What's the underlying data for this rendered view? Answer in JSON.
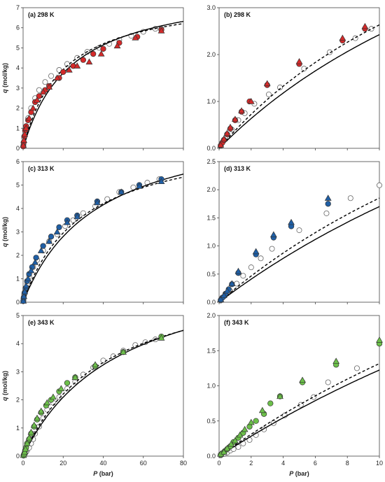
{
  "colors": {
    "red": "#d42a2a",
    "blue": "#1f5fa6",
    "green": "#6cc04a",
    "open": "#ffffff",
    "edge": "#333333"
  },
  "chart_data": [
    {
      "type": "scatter",
      "title": "(a) 298 K",
      "xlabel_pre": "P",
      "xlabel_post": " (bar)",
      "ylabel_pre": "q",
      "ylabel_post": " (mol/kg)",
      "xlim": [
        0,
        80
      ],
      "ylim": [
        0,
        7
      ],
      "xticks": [
        "0",
        "20",
        "40",
        "60",
        "80"
      ],
      "yticks": [
        "0",
        "1",
        "2",
        "3",
        "4",
        "5",
        "6",
        "7"
      ],
      "show_xticks": false,
      "show_xlabel": false,
      "color": "red",
      "open": [
        [
          0.2,
          0.2
        ],
        [
          0.5,
          0.5
        ],
        [
          1,
          0.8
        ],
        [
          1.5,
          1.1
        ],
        [
          2.5,
          1.5
        ],
        [
          4,
          2.0
        ],
        [
          6,
          2.5
        ],
        [
          8,
          2.9
        ],
        [
          11,
          3.3
        ],
        [
          14,
          3.6
        ],
        [
          18,
          3.9
        ],
        [
          22,
          4.2
        ],
        [
          27,
          4.5
        ],
        [
          32,
          4.8
        ],
        [
          38,
          5.0
        ],
        [
          43,
          5.2
        ],
        [
          48,
          5.4
        ],
        [
          54,
          5.6
        ],
        [
          60,
          5.8
        ],
        [
          66,
          5.95
        ],
        [
          69,
          5.95
        ]
      ],
      "circles": [
        [
          0.1,
          0.1
        ],
        [
          0.3,
          0.3
        ],
        [
          0.6,
          0.6
        ],
        [
          1,
          0.9
        ],
        [
          1.5,
          1.1
        ],
        [
          2.5,
          1.4
        ],
        [
          4,
          1.8
        ],
        [
          6,
          2.3
        ],
        [
          8,
          2.6
        ],
        [
          11,
          2.9
        ],
        [
          13,
          3.1
        ],
        [
          18,
          3.5
        ],
        [
          20,
          3.8
        ],
        [
          25,
          4.1
        ],
        [
          30,
          4.4
        ],
        [
          35,
          4.7
        ],
        [
          40,
          4.95
        ],
        [
          48,
          5.25
        ],
        [
          57,
          5.55
        ],
        [
          69,
          5.9
        ]
      ],
      "triangles": [
        [
          0.1,
          0.15
        ],
        [
          0.4,
          0.4
        ],
        [
          0.8,
          0.7
        ],
        [
          1.5,
          1.0
        ],
        [
          3,
          1.5
        ],
        [
          5,
          2.0
        ],
        [
          7,
          2.4
        ],
        [
          10,
          2.8
        ],
        [
          13,
          3.05
        ],
        [
          17,
          3.5
        ],
        [
          23,
          3.9
        ],
        [
          27,
          4.1
        ],
        [
          33,
          4.3
        ],
        [
          39,
          4.7
        ],
        [
          47,
          5.1
        ],
        [
          56,
          5.5
        ],
        [
          69,
          5.85
        ]
      ],
      "solid": {
        "qm": 8.2,
        "b": 0.042
      },
      "dashed": {
        "qm": 7.7,
        "b": 0.052
      }
    },
    {
      "type": "scatter",
      "title": "(b) 298 K",
      "xlabel_pre": "P",
      "xlabel_post": " (bar)",
      "ylabel_pre": "",
      "ylabel_post": "",
      "xlim": [
        0,
        10
      ],
      "ylim": [
        0,
        3
      ],
      "xticks": [
        "0",
        "2",
        "4",
        "6",
        "8",
        "10"
      ],
      "yticks": [
        "0.0",
        "1.0",
        "2.0",
        "3.0"
      ],
      "show_xticks": false,
      "show_xlabel": false,
      "color": "red",
      "open": [
        [
          0.1,
          0.05
        ],
        [
          0.4,
          0.2
        ],
        [
          0.8,
          0.4
        ],
        [
          1.2,
          0.6
        ],
        [
          1.6,
          0.75
        ],
        [
          2.2,
          0.95
        ],
        [
          3.1,
          1.15
        ],
        [
          3.8,
          1.3
        ],
        [
          5.3,
          1.7
        ],
        [
          6.9,
          2.05
        ],
        [
          8.5,
          2.35
        ],
        [
          9.5,
          2.55
        ]
      ],
      "circles": [
        [
          0.1,
          0.06
        ],
        [
          0.2,
          0.12
        ],
        [
          0.3,
          0.18
        ],
        [
          0.5,
          0.3
        ],
        [
          0.7,
          0.42
        ],
        [
          1.0,
          0.6
        ],
        [
          1.4,
          0.78
        ],
        [
          1.9,
          1.0
        ],
        [
          3.0,
          1.35
        ],
        [
          5.0,
          1.8
        ],
        [
          7.7,
          2.3
        ],
        [
          9.1,
          2.55
        ]
      ],
      "triangles": [
        [
          0.1,
          0.07
        ],
        [
          0.3,
          0.2
        ],
        [
          0.5,
          0.32
        ],
        [
          0.7,
          0.45
        ],
        [
          1.0,
          0.62
        ],
        [
          1.4,
          0.8
        ],
        [
          2.0,
          1.0
        ],
        [
          3.0,
          1.38
        ],
        [
          5.0,
          1.85
        ],
        [
          7.7,
          2.35
        ],
        [
          9.1,
          2.6
        ]
      ],
      "solid": {
        "qm": 8.2,
        "b": 0.042
      },
      "dashed": {
        "qm": 7.7,
        "b": 0.052
      }
    },
    {
      "type": "scatter",
      "title": "(c) 313 K",
      "xlabel_pre": "P",
      "xlabel_post": " (bar)",
      "ylabel_pre": "q",
      "ylabel_post": " (mol/kg)",
      "xlim": [
        0,
        80
      ],
      "ylim": [
        0,
        6
      ],
      "xticks": [
        "0",
        "20",
        "40",
        "60",
        "80"
      ],
      "yticks": [
        "0",
        "1",
        "2",
        "3",
        "4",
        "5",
        "6"
      ],
      "show_xticks": false,
      "show_xlabel": false,
      "color": "blue",
      "open": [
        [
          0.2,
          0.1
        ],
        [
          0.5,
          0.3
        ],
        [
          1,
          0.5
        ],
        [
          2,
          0.8
        ],
        [
          3,
          1.1
        ],
        [
          5,
          1.5
        ],
        [
          7,
          1.8
        ],
        [
          10,
          2.2
        ],
        [
          13,
          2.6
        ],
        [
          17,
          2.9
        ],
        [
          21,
          3.25
        ],
        [
          25,
          3.5
        ],
        [
          30,
          3.8
        ],
        [
          36,
          4.1
        ],
        [
          42,
          4.4
        ],
        [
          48,
          4.7
        ],
        [
          55,
          4.9
        ],
        [
          62,
          5.1
        ],
        [
          68,
          5.25
        ]
      ],
      "circles": [
        [
          0.1,
          0.05
        ],
        [
          0.3,
          0.2
        ],
        [
          0.7,
          0.4
        ],
        [
          1.2,
          0.6
        ],
        [
          2,
          0.9
        ],
        [
          3,
          1.2
        ],
        [
          4.5,
          1.5
        ],
        [
          6.5,
          1.9
        ],
        [
          10,
          2.4
        ],
        [
          14,
          2.8
        ],
        [
          18,
          3.2
        ],
        [
          22,
          3.5
        ],
        [
          27,
          3.7
        ],
        [
          37,
          4.3
        ],
        [
          49,
          4.7
        ],
        [
          58,
          5.0
        ],
        [
          69,
          5.25
        ]
      ],
      "triangles": [
        [
          0.1,
          0.05
        ],
        [
          0.4,
          0.25
        ],
        [
          0.8,
          0.45
        ],
        [
          1.5,
          0.7
        ],
        [
          2.5,
          1.0
        ],
        [
          4,
          1.35
        ],
        [
          6,
          1.7
        ],
        [
          9,
          2.2
        ],
        [
          13,
          2.6
        ],
        [
          17,
          3.0
        ],
        [
          22,
          3.4
        ],
        [
          27,
          3.65
        ],
        [
          37,
          4.25
        ],
        [
          49,
          4.7
        ],
        [
          58,
          4.95
        ],
        [
          69,
          5.15
        ]
      ],
      "solid": {
        "qm": 8.0,
        "b": 0.027
      },
      "dashed": {
        "qm": 7.3,
        "b": 0.034
      }
    },
    {
      "type": "scatter",
      "title": "(d) 313 K",
      "xlabel_pre": "P",
      "xlabel_post": " (bar)",
      "ylabel_pre": "",
      "ylabel_post": "",
      "xlim": [
        0,
        10
      ],
      "ylim": [
        0,
        2.5
      ],
      "xticks": [
        "0",
        "2",
        "4",
        "6",
        "8",
        "10"
      ],
      "yticks": [
        "0.0",
        "0.5",
        "1.0",
        "1.5",
        "2.0",
        "2.5"
      ],
      "show_xticks": false,
      "show_xlabel": false,
      "color": "blue",
      "open": [
        [
          0.1,
          0.03
        ],
        [
          0.3,
          0.1
        ],
        [
          0.7,
          0.2
        ],
        [
          1.1,
          0.33
        ],
        [
          1.5,
          0.47
        ],
        [
          2.0,
          0.62
        ],
        [
          2.6,
          0.78
        ],
        [
          3.3,
          0.95
        ],
        [
          5.0,
          1.28
        ],
        [
          6.7,
          1.58
        ],
        [
          8.2,
          1.85
        ],
        [
          10,
          2.08
        ]
      ],
      "circles": [
        [
          0.1,
          0.04
        ],
        [
          0.2,
          0.08
        ],
        [
          0.4,
          0.15
        ],
        [
          0.6,
          0.23
        ],
        [
          0.8,
          0.32
        ],
        [
          1.2,
          0.52
        ],
        [
          2.3,
          0.85
        ],
        [
          3.4,
          1.15
        ],
        [
          4.5,
          1.35
        ],
        [
          6.8,
          1.75
        ]
      ],
      "triangles": [
        [
          0.1,
          0.05
        ],
        [
          0.3,
          0.12
        ],
        [
          0.5,
          0.2
        ],
        [
          0.8,
          0.33
        ],
        [
          1.2,
          0.55
        ],
        [
          2.3,
          0.9
        ],
        [
          3.4,
          1.2
        ],
        [
          4.5,
          1.42
        ],
        [
          6.8,
          1.85
        ]
      ],
      "solid": {
        "qm": 8.0,
        "b": 0.027
      },
      "dashed": {
        "qm": 7.3,
        "b": 0.034
      }
    },
    {
      "type": "scatter",
      "title": "(e) 343 K",
      "xlabel_pre": "P",
      "xlabel_post": " (bar)",
      "ylabel_pre": "q",
      "ylabel_post": " (mol/kg)",
      "xlim": [
        0,
        80
      ],
      "ylim": [
        0,
        5
      ],
      "xticks": [
        "0",
        "20",
        "40",
        "60",
        "80"
      ],
      "yticks": [
        "0",
        "1",
        "2",
        "3",
        "4",
        "5"
      ],
      "show_xticks": true,
      "show_xlabel": true,
      "color": "green",
      "open": [
        [
          0.5,
          0.05
        ],
        [
          1,
          0.1
        ],
        [
          1.5,
          0.15
        ],
        [
          2,
          0.2
        ],
        [
          3,
          0.3
        ],
        [
          4,
          0.45
        ],
        [
          5,
          0.6
        ],
        [
          6,
          0.8
        ],
        [
          8,
          1.05
        ],
        [
          10,
          1.35
        ],
        [
          12,
          1.65
        ],
        [
          15,
          1.9
        ],
        [
          18,
          2.1
        ],
        [
          22,
          2.4
        ],
        [
          26,
          2.65
        ],
        [
          30,
          2.9
        ],
        [
          35,
          3.15
        ],
        [
          40,
          3.4
        ],
        [
          45,
          3.55
        ],
        [
          50,
          3.75
        ],
        [
          56,
          3.95
        ],
        [
          61,
          4.05
        ],
        [
          66,
          4.15
        ]
      ],
      "circles": [
        [
          0.2,
          0.02
        ],
        [
          0.4,
          0.05
        ],
        [
          0.7,
          0.1
        ],
        [
          1,
          0.2
        ],
        [
          1.5,
          0.3
        ],
        [
          2,
          0.45
        ],
        [
          3,
          0.6
        ],
        [
          4,
          0.8
        ],
        [
          5.5,
          1.05
        ],
        [
          7,
          1.3
        ],
        [
          9,
          1.55
        ],
        [
          11.5,
          1.8
        ],
        [
          14,
          2.0
        ],
        [
          18,
          2.3
        ],
        [
          22,
          2.6
        ],
        [
          26,
          2.8
        ],
        [
          36,
          3.2
        ],
        [
          50,
          3.7
        ],
        [
          69,
          4.25
        ]
      ],
      "triangles": [
        [
          0.2,
          0.03
        ],
        [
          0.5,
          0.08
        ],
        [
          0.8,
          0.15
        ],
        [
          1.2,
          0.25
        ],
        [
          2,
          0.45
        ],
        [
          3,
          0.65
        ],
        [
          4,
          0.85
        ],
        [
          5.5,
          1.1
        ],
        [
          7,
          1.35
        ],
        [
          9,
          1.6
        ],
        [
          12,
          1.9
        ],
        [
          15,
          2.1
        ],
        [
          19,
          2.4
        ],
        [
          26,
          2.8
        ],
        [
          36,
          3.25
        ],
        [
          50,
          3.7
        ],
        [
          69,
          4.2
        ]
      ],
      "solid": {
        "qm": 7.2,
        "b": 0.0205
      },
      "dashed": {
        "qm": 6.8,
        "b": 0.024
      }
    },
    {
      "type": "scatter",
      "title": "(f) 343 K",
      "xlabel_pre": "P",
      "xlabel_post": " (bar)",
      "ylabel_pre": "",
      "ylabel_post": "",
      "xlim": [
        0,
        10
      ],
      "ylim": [
        0,
        2.0
      ],
      "xticks": [
        "0",
        "2",
        "4",
        "6",
        "8",
        "10"
      ],
      "yticks": [
        "0.0",
        "0.5",
        "1.0",
        "1.5",
        "2.0"
      ],
      "show_xticks": true,
      "show_xlabel": true,
      "color": "green",
      "open": [
        [
          0.1,
          0.01
        ],
        [
          0.3,
          0.03
        ],
        [
          0.5,
          0.05
        ],
        [
          0.7,
          0.08
        ],
        [
          0.9,
          0.1
        ],
        [
          1.2,
          0.13
        ],
        [
          1.5,
          0.18
        ],
        [
          1.9,
          0.23
        ],
        [
          2.3,
          0.3
        ],
        [
          2.8,
          0.38
        ],
        [
          3.4,
          0.47
        ],
        [
          4.1,
          0.58
        ],
        [
          5.1,
          0.73
        ],
        [
          5.9,
          0.84
        ],
        [
          6.8,
          1.05
        ],
        [
          8.6,
          1.25
        ]
      ],
      "circles": [
        [
          0.1,
          0.02
        ],
        [
          0.2,
          0.04
        ],
        [
          0.35,
          0.07
        ],
        [
          0.5,
          0.1
        ],
        [
          0.7,
          0.14
        ],
        [
          0.9,
          0.2
        ],
        [
          1.2,
          0.26
        ],
        [
          1.5,
          0.33
        ],
        [
          1.9,
          0.42
        ],
        [
          2.3,
          0.5
        ],
        [
          2.8,
          0.6
        ],
        [
          3.2,
          0.75
        ],
        [
          3.8,
          0.85
        ],
        [
          5.2,
          1.05
        ],
        [
          7.3,
          1.3
        ],
        [
          10,
          1.6
        ]
      ],
      "triangles": [
        [
          0.1,
          0.03
        ],
        [
          0.3,
          0.06
        ],
        [
          0.5,
          0.11
        ],
        [
          0.75,
          0.17
        ],
        [
          1.0,
          0.22
        ],
        [
          1.3,
          0.3
        ],
        [
          1.6,
          0.38
        ],
        [
          2.0,
          0.48
        ],
        [
          2.7,
          0.65
        ],
        [
          3.8,
          0.85
        ],
        [
          5.2,
          1.08
        ],
        [
          7.3,
          1.35
        ],
        [
          10,
          1.65
        ]
      ],
      "solid": {
        "qm": 7.2,
        "b": 0.0205
      },
      "dashed": {
        "qm": 6.8,
        "b": 0.024
      }
    }
  ]
}
